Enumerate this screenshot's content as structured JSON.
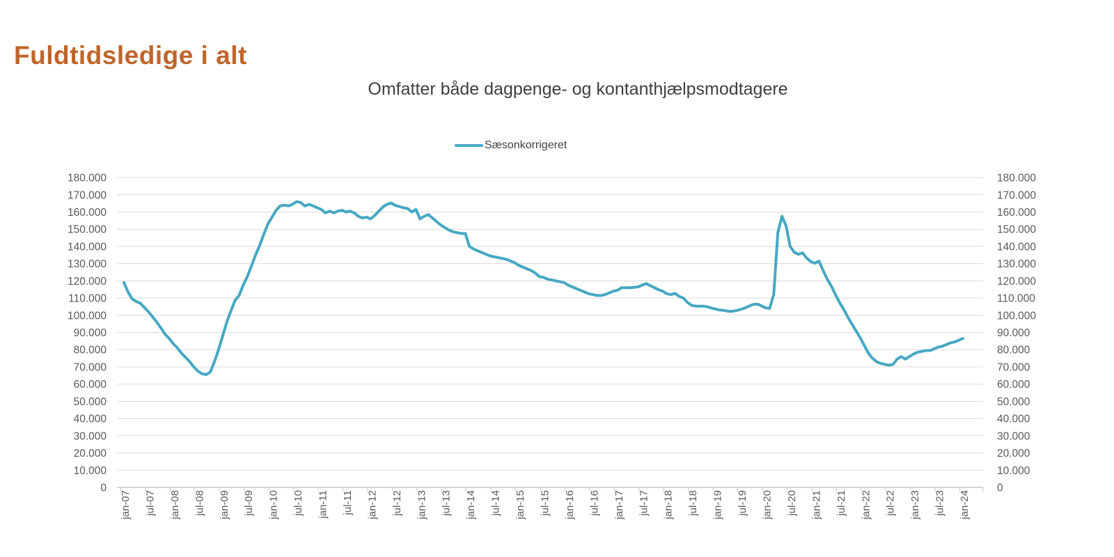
{
  "page_title": "Fuldtidsledige i alt",
  "colors": {
    "title": "#BF652A",
    "subtitle": "#3F3F3F",
    "axis_label": "#595959",
    "gridline": "#D9D9D9",
    "axis_line": "#C9C9C9",
    "series_line": "#46A8C2"
  },
  "legend": {
    "label": "Sæsonkorrigeret"
  },
  "chart_data": {
    "type": "line",
    "title": "Omfatter både dagpenge- og kontanthjælpsmodtagere",
    "xlabel": "",
    "ylabel": "",
    "x_start": "jan-07",
    "x_end": "jan-24",
    "frequency": "monthly",
    "x_tick_labels": [
      "jan-07",
      "jul-07",
      "jan-08",
      "jul-08",
      "jan-09",
      "jul-09",
      "jan-10",
      "jul-10",
      "jan-11",
      "jul-11",
      "jan-12",
      "jul-12",
      "jan-13",
      "jul-13",
      "jan-14",
      "jul-14",
      "jan-15",
      "jul-15",
      "jan-16",
      "jul-16",
      "jan-17",
      "jul-17",
      "jan-18",
      "jul-18",
      "jan-19",
      "jul-19",
      "jan-20",
      "jul-20",
      "jan-21",
      "jul-21",
      "jan-22",
      "jul-22",
      "jan-23",
      "jul-23",
      "jan-24"
    ],
    "ylim": [
      0,
      180000
    ],
    "y_tick_step": 10000,
    "y_tick_labels": [
      "180.000",
      "170.000",
      "160.000",
      "150.000",
      "140.000",
      "130.000",
      "120.000",
      "110.000",
      "100.000",
      "90.000",
      "80.000",
      "70.000",
      "60.000",
      "50.000",
      "40.000",
      "30.000",
      "20.000",
      "10.000",
      "0"
    ],
    "grid": true,
    "legend_position": "top",
    "series": [
      {
        "name": "Sæsonkorrigeret",
        "color": "#46A8C2",
        "values": [
          119000,
          113500,
          109500,
          108000,
          107000,
          104500,
          102000,
          99000,
          96000,
          92500,
          89000,
          86500,
          83500,
          81000,
          78000,
          75500,
          73000,
          70000,
          67500,
          66000,
          65500,
          67000,
          73000,
          80000,
          88000,
          96000,
          102500,
          108500,
          111500,
          117500,
          122500,
          128500,
          135000,
          140500,
          147000,
          153000,
          157000,
          161000,
          163500,
          164000,
          163500,
          164500,
          166000,
          165500,
          163500,
          164500,
          163500,
          162500,
          161500,
          159500,
          160500,
          159500,
          160500,
          161000,
          160000,
          160500,
          159500,
          157500,
          156500,
          157000,
          156000,
          158000,
          160500,
          163000,
          164500,
          165200,
          163800,
          163200,
          162400,
          162000,
          160000,
          161500,
          156000,
          157500,
          158500,
          156500,
          154500,
          152500,
          151000,
          149500,
          148500,
          148000,
          147500,
          147500,
          140000,
          138500,
          137500,
          136500,
          135500,
          134500,
          134000,
          133500,
          133000,
          132500,
          131500,
          130500,
          129000,
          128000,
          127000,
          126000,
          124500,
          122500,
          122000,
          121000,
          120500,
          120000,
          119500,
          119000,
          117500,
          116500,
          115500,
          114500,
          113500,
          112500,
          112000,
          111500,
          111500,
          112000,
          113000,
          114000,
          114500,
          116000,
          116000,
          116000,
          116200,
          116500,
          117500,
          118400,
          117200,
          116000,
          114800,
          114000,
          112500,
          112000,
          112700,
          111000,
          110000,
          107500,
          105800,
          105300,
          105300,
          105300,
          104800,
          104100,
          103500,
          103000,
          102800,
          102300,
          102300,
          102800,
          103400,
          104300,
          105300,
          106300,
          106500,
          105500,
          104300,
          104000,
          112000,
          148000,
          157500,
          152000,
          140000,
          136600,
          135400,
          136300,
          133200,
          131200,
          130200,
          131500,
          126000,
          121000,
          117000,
          112000,
          107500,
          103500,
          99000,
          95000,
          91000,
          87000,
          82500,
          78000,
          75000,
          73000,
          72000,
          71500,
          71000,
          71500,
          74500,
          76000,
          74500,
          76000,
          77500,
          78500,
          79000,
          79500,
          79500,
          80500,
          81500,
          82000,
          83000,
          84000,
          84500,
          85500,
          86500
        ]
      }
    ]
  }
}
